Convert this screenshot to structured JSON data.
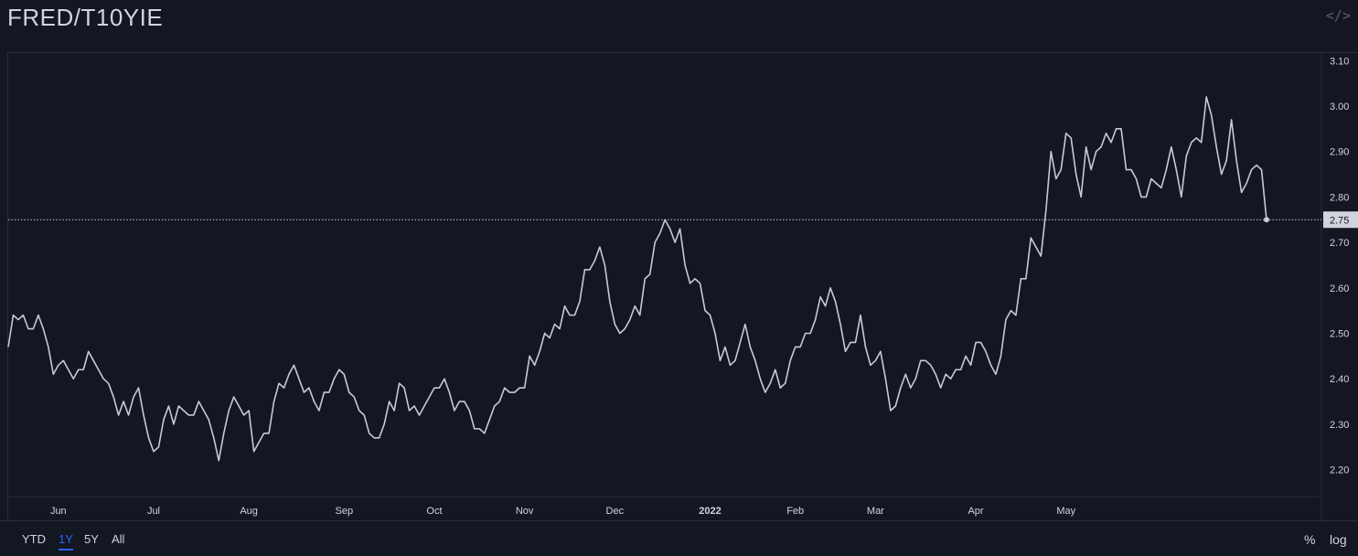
{
  "header": {
    "title": "FRED/T10YIE",
    "embed_icon": "code-icon"
  },
  "toolbar": {
    "ranges": [
      {
        "label": "YTD",
        "active": false
      },
      {
        "label": "1Y",
        "active": true
      },
      {
        "label": "5Y",
        "active": false
      },
      {
        "label": "All",
        "active": false
      }
    ],
    "percent_label": "%",
    "log_label": "log"
  },
  "colors": {
    "background": "#131722",
    "line": "#c7cad3",
    "grid_border": "#2a2e39",
    "text": "#d1d4dc",
    "price_tag_bg": "#d1d4dc",
    "active": "#2962ff"
  },
  "chart_data": {
    "type": "line",
    "title": "FRED/T10YIE",
    "y_ticks": [
      "2.20",
      "2.30",
      "2.40",
      "2.50",
      "2.60",
      "2.70",
      "2.80",
      "2.90",
      "3.00",
      "3.10"
    ],
    "ylim": [
      2.1,
      3.12
    ],
    "x_ticks": [
      {
        "label": "Jun",
        "index": 10
      },
      {
        "label": "Jul",
        "index": 29
      },
      {
        "label": "Aug",
        "index": 48
      },
      {
        "label": "Sep",
        "index": 67
      },
      {
        "label": "Oct",
        "index": 85
      },
      {
        "label": "Nov",
        "index": 103
      },
      {
        "label": "Dec",
        "index": 121
      },
      {
        "label": "2022",
        "index": 140,
        "bold": true
      },
      {
        "label": "Feb",
        "index": 157
      },
      {
        "label": "Mar",
        "index": 173
      },
      {
        "label": "Apr",
        "index": 193
      },
      {
        "label": "May",
        "index": 211
      }
    ],
    "last_value": "2.75",
    "grid": false,
    "values": [
      2.47,
      2.54,
      2.53,
      2.54,
      2.51,
      2.51,
      2.54,
      2.51,
      2.47,
      2.41,
      2.43,
      2.44,
      2.42,
      2.4,
      2.42,
      2.42,
      2.46,
      2.44,
      2.42,
      2.4,
      2.39,
      2.36,
      2.32,
      2.35,
      2.32,
      2.36,
      2.38,
      2.32,
      2.27,
      2.24,
      2.25,
      2.31,
      2.34,
      2.3,
      2.34,
      2.33,
      2.32,
      2.32,
      2.35,
      2.33,
      2.31,
      2.27,
      2.22,
      2.28,
      2.33,
      2.36,
      2.34,
      2.32,
      2.33,
      2.24,
      2.26,
      2.28,
      2.28,
      2.35,
      2.39,
      2.38,
      2.41,
      2.43,
      2.4,
      2.37,
      2.38,
      2.35,
      2.33,
      2.37,
      2.37,
      2.4,
      2.42,
      2.41,
      2.37,
      2.36,
      2.33,
      2.32,
      2.28,
      2.27,
      2.27,
      2.3,
      2.35,
      2.33,
      2.39,
      2.38,
      2.33,
      2.34,
      2.32,
      2.34,
      2.36,
      2.38,
      2.38,
      2.4,
      2.37,
      2.33,
      2.35,
      2.35,
      2.33,
      2.29,
      2.29,
      2.28,
      2.31,
      2.34,
      2.35,
      2.38,
      2.37,
      2.37,
      2.38,
      2.38,
      2.45,
      2.43,
      2.46,
      2.5,
      2.49,
      2.52,
      2.51,
      2.56,
      2.54,
      2.54,
      2.57,
      2.64,
      2.64,
      2.66,
      2.69,
      2.65,
      2.57,
      2.52,
      2.5,
      2.51,
      2.53,
      2.56,
      2.54,
      2.62,
      2.63,
      2.7,
      2.72,
      2.75,
      2.73,
      2.7,
      2.73,
      2.65,
      2.61,
      2.62,
      2.61,
      2.55,
      2.54,
      2.5,
      2.44,
      2.47,
      2.43,
      2.44,
      2.48,
      2.52,
      2.47,
      2.44,
      2.4,
      2.37,
      2.39,
      2.42,
      2.38,
      2.39,
      2.44,
      2.47,
      2.47,
      2.5,
      2.5,
      2.53,
      2.58,
      2.56,
      2.6,
      2.57,
      2.52,
      2.46,
      2.48,
      2.48,
      2.54,
      2.47,
      2.43,
      2.44,
      2.46,
      2.4,
      2.33,
      2.34,
      2.38,
      2.41,
      2.38,
      2.4,
      2.44,
      2.44,
      2.43,
      2.41,
      2.38,
      2.41,
      2.4,
      2.42,
      2.42,
      2.45,
      2.43,
      2.48,
      2.48,
      2.46,
      2.43,
      2.41,
      2.45,
      2.53,
      2.55,
      2.54,
      2.62,
      2.62,
      2.71,
      2.69,
      2.67,
      2.77,
      2.9,
      2.84,
      2.86,
      2.94,
      2.93,
      2.85,
      2.8,
      2.91,
      2.86,
      2.9,
      2.91,
      2.94,
      2.92,
      2.95,
      2.95,
      2.86,
      2.86,
      2.84,
      2.8,
      2.8,
      2.84,
      2.83,
      2.82,
      2.86,
      2.91,
      2.86,
      2.8,
      2.89,
      2.92,
      2.93,
      2.92,
      3.02,
      2.98,
      2.91,
      2.85,
      2.88,
      2.97,
      2.88,
      2.81,
      2.83,
      2.86,
      2.87,
      2.86,
      2.75
    ]
  }
}
